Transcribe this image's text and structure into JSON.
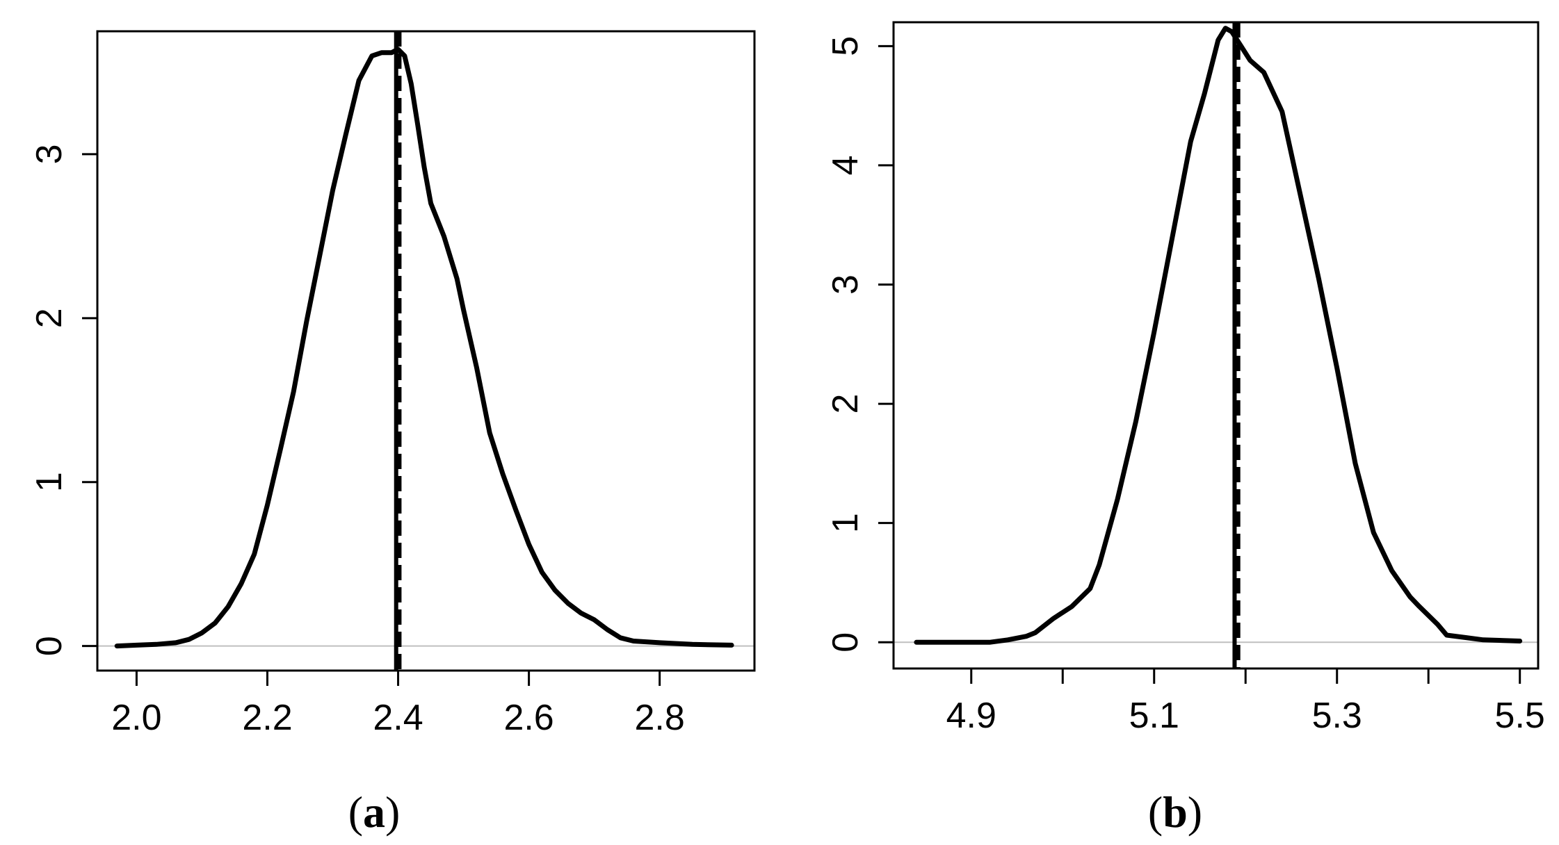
{
  "colors": {
    "curve": "#000000",
    "frame": "#000000",
    "zero_line": "#bfbfbf"
  },
  "chart_data": [
    {
      "type": "line",
      "panel_label": {
        "open": "(",
        "letter": "a",
        "close": ")"
      },
      "title": "",
      "xlabel": "",
      "ylabel": "",
      "xlim": [
        1.94,
        2.945
      ],
      "ylim": [
        -0.15,
        3.75
      ],
      "xticks": [
        2.0,
        2.2,
        2.4,
        2.6,
        2.8
      ],
      "xtick_labels": [
        "2.0",
        "2.2",
        "2.4",
        "2.6",
        "2.8"
      ],
      "yticks": [
        0,
        1,
        2,
        3
      ],
      "ytick_labels": [
        "0",
        "1",
        "2",
        "3"
      ],
      "zero_line": true,
      "grid": false,
      "vlines": [
        {
          "x": 2.397,
          "style": "solid"
        },
        {
          "x": 2.402,
          "style": "dashed"
        }
      ],
      "series": [
        {
          "points": [
            [
              1.97,
              0.0
            ],
            [
              2.0,
              0.005
            ],
            [
              2.03,
              0.01
            ],
            [
              2.06,
              0.02
            ],
            [
              2.08,
              0.04
            ],
            [
              2.1,
              0.08
            ],
            [
              2.12,
              0.14
            ],
            [
              2.14,
              0.24
            ],
            [
              2.16,
              0.38
            ],
            [
              2.18,
              0.56
            ],
            [
              2.2,
              0.86
            ],
            [
              2.22,
              1.2
            ],
            [
              2.24,
              1.55
            ],
            [
              2.26,
              1.98
            ],
            [
              2.28,
              2.38
            ],
            [
              2.3,
              2.78
            ],
            [
              2.32,
              3.12
            ],
            [
              2.34,
              3.45
            ],
            [
              2.36,
              3.6
            ],
            [
              2.375,
              3.62
            ],
            [
              2.39,
              3.62
            ],
            [
              2.4,
              3.64
            ],
            [
              2.41,
              3.6
            ],
            [
              2.42,
              3.43
            ],
            [
              2.43,
              3.18
            ],
            [
              2.44,
              2.92
            ],
            [
              2.45,
              2.7
            ],
            [
              2.47,
              2.5
            ],
            [
              2.49,
              2.24
            ],
            [
              2.5,
              2.05
            ],
            [
              2.52,
              1.7
            ],
            [
              2.54,
              1.3
            ],
            [
              2.56,
              1.05
            ],
            [
              2.58,
              0.83
            ],
            [
              2.6,
              0.62
            ],
            [
              2.62,
              0.45
            ],
            [
              2.64,
              0.34
            ],
            [
              2.66,
              0.26
            ],
            [
              2.68,
              0.2
            ],
            [
              2.7,
              0.16
            ],
            [
              2.72,
              0.1
            ],
            [
              2.74,
              0.05
            ],
            [
              2.76,
              0.03
            ],
            [
              2.8,
              0.02
            ],
            [
              2.85,
              0.01
            ],
            [
              2.91,
              0.005
            ]
          ]
        }
      ]
    },
    {
      "type": "line",
      "panel_label": {
        "open": "(",
        "letter": "b",
        "close": ")"
      },
      "title": "",
      "xlabel": "",
      "ylabel": "",
      "xlim": [
        4.815,
        5.52
      ],
      "ylim": [
        -0.22,
        5.2
      ],
      "xticks": [
        4.9,
        5.0,
        5.1,
        5.2,
        5.3,
        5.4,
        5.5
      ],
      "xtick_labels": [
        "4.9",
        "",
        "5.1",
        "",
        "5.3",
        "",
        "5.5"
      ],
      "yticks": [
        0,
        1,
        2,
        3,
        4,
        5
      ],
      "ytick_labels": [
        "0",
        "1",
        "2",
        "3",
        "4",
        "5"
      ],
      "zero_line": true,
      "grid": false,
      "vlines": [
        {
          "x": 5.188,
          "style": "solid"
        },
        {
          "x": 5.192,
          "style": "dashed"
        }
      ],
      "series": [
        {
          "points": [
            [
              4.84,
              0.0
            ],
            [
              4.88,
              0.0
            ],
            [
              4.92,
              0.0
            ],
            [
              4.94,
              0.02
            ],
            [
              4.96,
              0.05
            ],
            [
              4.97,
              0.08
            ],
            [
              4.99,
              0.2
            ],
            [
              5.01,
              0.3
            ],
            [
              5.03,
              0.45
            ],
            [
              5.04,
              0.65
            ],
            [
              5.06,
              1.2
            ],
            [
              5.08,
              1.85
            ],
            [
              5.1,
              2.6
            ],
            [
              5.12,
              3.4
            ],
            [
              5.14,
              4.2
            ],
            [
              5.155,
              4.6
            ],
            [
              5.17,
              5.05
            ],
            [
              5.178,
              5.15
            ],
            [
              5.185,
              5.12
            ],
            [
              5.195,
              5.0
            ],
            [
              5.205,
              4.88
            ],
            [
              5.22,
              4.78
            ],
            [
              5.24,
              4.45
            ],
            [
              5.26,
              3.75
            ],
            [
              5.28,
              3.05
            ],
            [
              5.3,
              2.3
            ],
            [
              5.32,
              1.5
            ],
            [
              5.34,
              0.92
            ],
            [
              5.36,
              0.6
            ],
            [
              5.38,
              0.38
            ],
            [
              5.39,
              0.3
            ],
            [
              5.41,
              0.15
            ],
            [
              5.42,
              0.06
            ],
            [
              5.44,
              0.04
            ],
            [
              5.46,
              0.02
            ],
            [
              5.5,
              0.01
            ]
          ]
        }
      ]
    }
  ]
}
